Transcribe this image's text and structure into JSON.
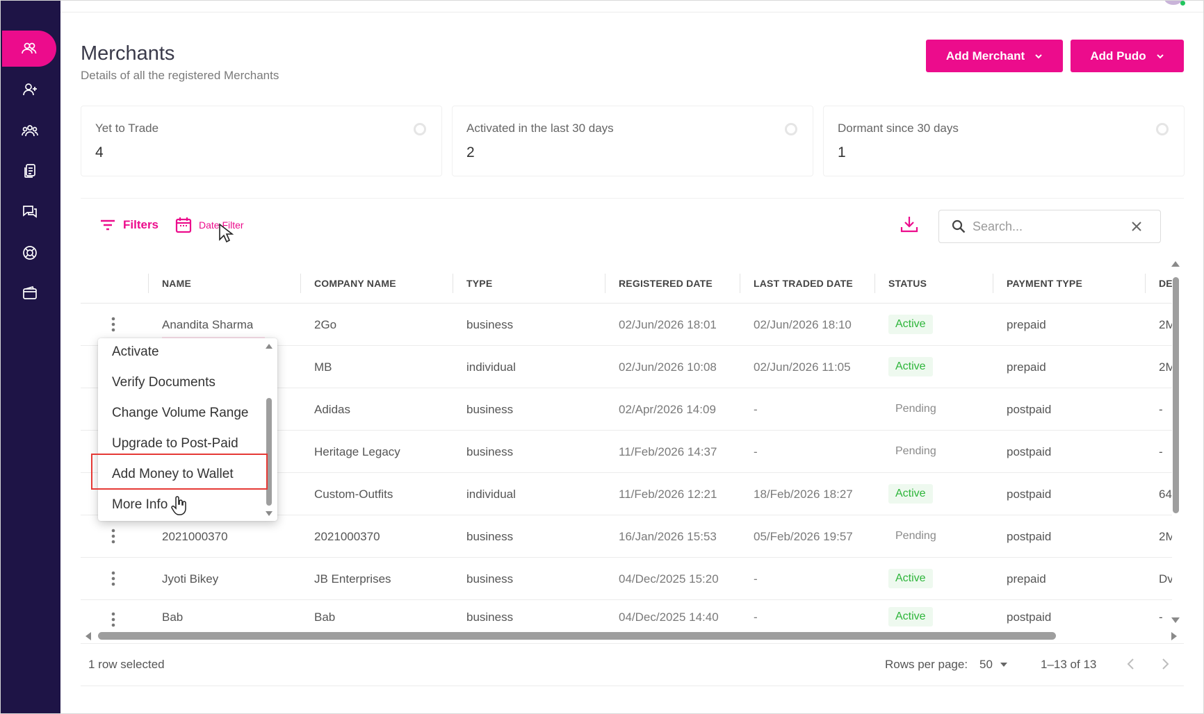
{
  "header": {
    "title": "Merchants",
    "subtitle": "Details of all the registered Merchants",
    "add_merchant_label": "Add Merchant",
    "add_pudo_label": "Add Pudo"
  },
  "stats": [
    {
      "label": "Yet to Trade",
      "value": "4"
    },
    {
      "label": "Activated in the last 30 days",
      "value": "2"
    },
    {
      "label": "Dormant since 30 days",
      "value": "1"
    }
  ],
  "toolbar": {
    "filters_label": "Filters",
    "date_filter_label": "Date Filter",
    "search_placeholder": "Search..."
  },
  "table": {
    "columns": [
      "NAME",
      "COMPANY NAME",
      "TYPE",
      "REGISTERED DATE",
      "LAST TRADED DATE",
      "STATUS",
      "PAYMENT TYPE",
      "DE"
    ],
    "rows": [
      {
        "name": "Anandita Sharma",
        "company": "2Go",
        "type": "business",
        "registered": "02/Jun/2026 18:01",
        "last_traded": "02/Jun/2026 18:10",
        "status": "Active",
        "payment": "prepaid",
        "extra": "2M"
      },
      {
        "name": "",
        "company": "MB",
        "type": "individual",
        "registered": "02/Jun/2026 10:08",
        "last_traded": "02/Jun/2026 11:05",
        "status": "Active",
        "payment": "prepaid",
        "extra": "2M"
      },
      {
        "name": "",
        "company": "Adidas",
        "type": "business",
        "registered": "02/Apr/2026 14:09",
        "last_traded": "-",
        "status": "Pending",
        "payment": "postpaid",
        "extra": "-"
      },
      {
        "name": "",
        "company": "Heritage Legacy",
        "type": "business",
        "registered": "11/Feb/2026 14:37",
        "last_traded": "-",
        "status": "Pending",
        "payment": "postpaid",
        "extra": "-"
      },
      {
        "name": "",
        "company": "Custom-Outfits",
        "type": "individual",
        "registered": "11/Feb/2026 12:21",
        "last_traded": "18/Feb/2026 18:27",
        "status": "Active",
        "payment": "postpaid",
        "extra": "64"
      },
      {
        "name": "2021000370",
        "company": "2021000370",
        "type": "business",
        "registered": "16/Jan/2026 15:53",
        "last_traded": "05/Feb/2026 19:57",
        "status": "Pending",
        "payment": "postpaid",
        "extra": "2M"
      },
      {
        "name": "Jyoti Bikey",
        "company": "JB Enterprises",
        "type": "business",
        "registered": "04/Dec/2025 15:20",
        "last_traded": "-",
        "status": "Active",
        "payment": "prepaid",
        "extra": "Dv"
      },
      {
        "name": "Bab",
        "company": "Bab",
        "type": "business",
        "registered": "04/Dec/2025 14:40",
        "last_traded": "-",
        "status": "Active",
        "payment": "postpaid",
        "extra": "-"
      }
    ]
  },
  "row_menu": {
    "items": [
      "Activate",
      "Verify Documents",
      "Change Volume Range",
      "Upgrade to Post-Paid",
      "Add Money to Wallet",
      "More Info"
    ]
  },
  "footer": {
    "selection_text": "1 row selected",
    "rows_per_page_label": "Rows per page:",
    "rows_per_page_value": "50",
    "page_range": "1–13 of 13"
  },
  "colors": {
    "accent": "#ec0c8c",
    "sidebar_bg": "#1e1446",
    "active_status": "#2db53a",
    "highlight_box": "#e53935"
  },
  "icons": {
    "sidebar": [
      "merchants-icon",
      "add-user-icon",
      "group-icon",
      "documents-icon",
      "chat-icon",
      "support-icon",
      "wallet-icon"
    ]
  }
}
